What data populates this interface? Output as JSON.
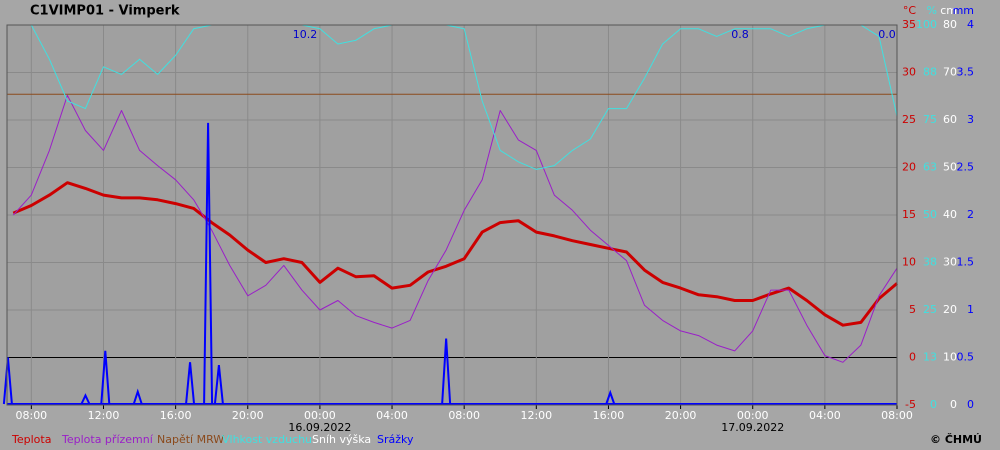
{
  "chart_data": {
    "type": "line",
    "title": "C1VIMP01 - Vimperk",
    "unit_labels": [
      "°C",
      "%",
      "cm",
      "mm"
    ],
    "credit": "© ČHMÚ",
    "annotations": [
      "10.2",
      "0.8",
      "0.0"
    ],
    "date_labels": [
      "16.09.2022",
      "17.09.2022"
    ],
    "x": [
      -17,
      -16,
      -15,
      -14,
      -13,
      -12,
      -11,
      -10,
      -9,
      -8,
      -7,
      -6,
      -5,
      -4,
      -3,
      -2,
      -1,
      0,
      1,
      2,
      3,
      4,
      5,
      6,
      7,
      8,
      9,
      10,
      11,
      12,
      13,
      14,
      15,
      16,
      17,
      18,
      19,
      20,
      21,
      22,
      23,
      24,
      25,
      26,
      27,
      28,
      29,
      30,
      31,
      32
    ],
    "xlim": [
      -17.35,
      32
    ],
    "xticks": [
      {
        "value": -16,
        "label": "08:00"
      },
      {
        "value": -12,
        "label": "12:00"
      },
      {
        "value": -8,
        "label": "16:00"
      },
      {
        "value": -4,
        "label": "20:00"
      },
      {
        "value": 0,
        "label": "00:00"
      },
      {
        "value": 4,
        "label": "04:00"
      },
      {
        "value": 8,
        "label": "08:00"
      },
      {
        "value": 12,
        "label": "12:00"
      },
      {
        "value": 16,
        "label": "16:00"
      },
      {
        "value": 20,
        "label": "20:00"
      },
      {
        "value": 24,
        "label": "00:00"
      },
      {
        "value": 28,
        "label": "04:00"
      },
      {
        "value": 32,
        "label": "08:00"
      }
    ],
    "ylim": [
      -5,
      35
    ],
    "yticks": [
      -5,
      0,
      5,
      10,
      15,
      20,
      25,
      30,
      35
    ],
    "y2lim": [
      0,
      100
    ],
    "y2ticks": [
      0,
      {
        "value": 12.5,
        "label": "13"
      },
      25,
      {
        "value": 37.5,
        "label": "38"
      },
      50,
      {
        "value": 62.5,
        "label": "63"
      },
      75,
      {
        "value": 87.5,
        "label": "88"
      },
      100
    ],
    "y3lim": [
      0,
      80
    ],
    "y3ticks": [
      0,
      10,
      20,
      30,
      40,
      50,
      60,
      70,
      80
    ],
    "y4lim": [
      0,
      4
    ],
    "y4ticks": [
      0,
      0.5,
      1,
      1.5,
      2,
      2.5,
      3,
      3.5,
      4
    ],
    "grid": true,
    "series": [
      {
        "name": "Teplota",
        "color": "#cc0000",
        "width": 3,
        "values": [
          15.2,
          16.0,
          17.1,
          18.4,
          17.8,
          17.1,
          16.8,
          16.8,
          16.6,
          16.2,
          15.7,
          14.2,
          12.9,
          11.3,
          10.0,
          10.4,
          10.0,
          7.9,
          9.4,
          8.5,
          8.6,
          7.3,
          7.6,
          9.0,
          9.6,
          10.4,
          13.2,
          14.2,
          14.4,
          13.2,
          12.8,
          12.3,
          11.9,
          11.5,
          11.1,
          9.2,
          7.9,
          7.3,
          6.6,
          6.4,
          6.0,
          6.0,
          6.7,
          7.3,
          6.0,
          4.5,
          3.4,
          3.7,
          6.2,
          7.8
        ]
      },
      {
        "name": "Teplota přízemní",
        "color": "#9a1fc8",
        "width": 1,
        "values": [
          15.0,
          17.1,
          21.8,
          27.6,
          23.9,
          21.8,
          26.0,
          21.8,
          20.2,
          18.7,
          16.6,
          13.4,
          9.7,
          6.5,
          7.6,
          9.7,
          7.1,
          5.0,
          6.0,
          4.4,
          3.7,
          3.1,
          3.9,
          8.1,
          11.3,
          15.5,
          18.7,
          26.0,
          22.9,
          21.8,
          17.1,
          15.5,
          13.4,
          11.8,
          10.2,
          5.5,
          3.9,
          2.8,
          2.3,
          1.3,
          0.7,
          2.8,
          7.1,
          7.1,
          3.4,
          0.2,
          -0.5,
          1.3,
          6.5,
          9.4
        ]
      },
      {
        "name": "Napětí MRW",
        "color": "#8b4a1c",
        "width": 1,
        "x": [
          -17.35,
          32
        ],
        "values": [
          27.7,
          27.7
        ]
      },
      {
        "name": "Vlhkost vzduchu",
        "color": "#40e0e0",
        "width": 1,
        "axis": "y2",
        "values": [
          100,
          100,
          91,
          80,
          78,
          89,
          87,
          91,
          87,
          92,
          99,
          100,
          100,
          100,
          100,
          100,
          100,
          99,
          95,
          96,
          99,
          100,
          100,
          100,
          100,
          99,
          80,
          67,
          64,
          62,
          63,
          67,
          70,
          78,
          78,
          86,
          95,
          99,
          99,
          97,
          99,
          99,
          99,
          97,
          99,
          100,
          100,
          100,
          97,
          76
        ]
      },
      {
        "name": "Sníh výška",
        "color": "#ffffff",
        "width": 1,
        "axis": "y3",
        "x": [
          -17.35,
          32
        ],
        "values": [
          0,
          0
        ]
      },
      {
        "name": "Srážky",
        "color": "#0000ff",
        "width": 2,
        "axis": "y4",
        "style": "spike",
        "x": [
          -17.3,
          -13.0,
          -11.9,
          -10.1,
          -7.2,
          -6.2,
          -5.6,
          7.0,
          16.1
        ],
        "values": [
          0.5,
          0.1,
          0.57,
          0.14,
          0.45,
          2.97,
          0.42,
          0.7,
          0.13
        ]
      }
    ]
  }
}
